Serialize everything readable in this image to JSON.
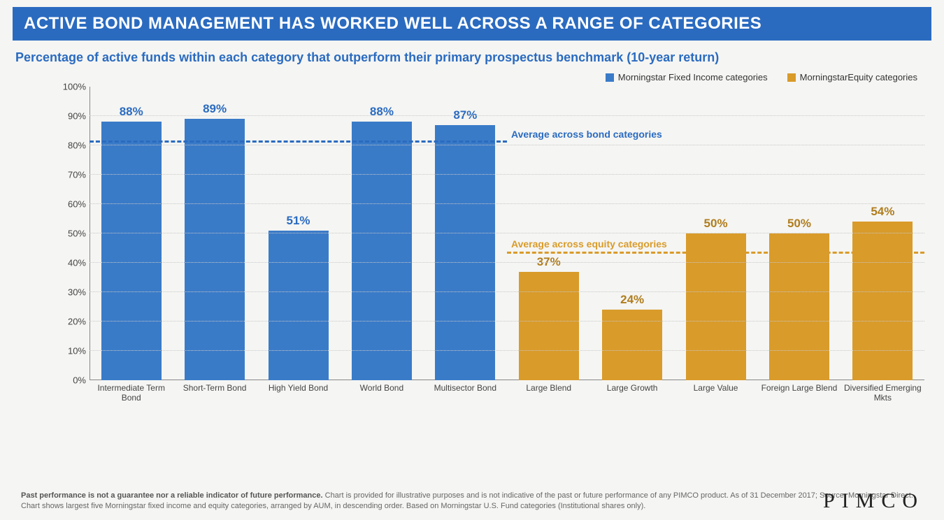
{
  "title": "ACTIVE BOND MANAGEMENT HAS WORKED WELL ACROSS A RANGE OF CATEGORIES",
  "subtitle": "Percentage of active funds within each category that outperform their primary prospectus benchmark (10-year return)",
  "legend": {
    "series1": {
      "label": "Morningstar Fixed Income categories",
      "color": "#3a7bc8"
    },
    "series2": {
      "label": "MorningstarEquity categories",
      "color": "#d99b2a"
    }
  },
  "chart": {
    "type": "bar",
    "ylim": [
      0,
      100
    ],
    "ytick_step": 10,
    "ytick_suffix": "%",
    "grid_color": "#c8c8c8",
    "axis_color": "#888888",
    "background": "#f5f5f3",
    "bars": [
      {
        "label": "Intermediate Term Bond",
        "value": 88,
        "color": "#3a7bc8",
        "label_color": "#2a6bc0"
      },
      {
        "label": "Short-Term Bond",
        "value": 89,
        "color": "#3a7bc8",
        "label_color": "#2a6bc0"
      },
      {
        "label": "High Yield Bond",
        "value": 51,
        "color": "#3a7bc8",
        "label_color": "#2a6bc0"
      },
      {
        "label": "World Bond",
        "value": 88,
        "color": "#3a7bc8",
        "label_color": "#2a6bc0"
      },
      {
        "label": "Multisector Bond",
        "value": 87,
        "color": "#3a7bc8",
        "label_color": "#2a6bc0"
      },
      {
        "label": "Large Blend",
        "value": 37,
        "color": "#d99b2a",
        "label_color": "#b07d1e"
      },
      {
        "label": "Large Growth",
        "value": 24,
        "color": "#d99b2a",
        "label_color": "#b07d1e"
      },
      {
        "label": "Large Value",
        "value": 50,
        "color": "#d99b2a",
        "label_color": "#b07d1e"
      },
      {
        "label": "Foreign Large Blend",
        "value": 50,
        "color": "#d99b2a",
        "label_color": "#b07d1e"
      },
      {
        "label": "Diversified Emerging Mkts",
        "value": 54,
        "color": "#d99b2a",
        "label_color": "#b07d1e"
      }
    ],
    "averages": {
      "bond": {
        "value": 81,
        "label": "Average across bond categories",
        "color": "#2a6bc0",
        "from_bar": 0,
        "to_bar": 5,
        "label_align": "right"
      },
      "equity": {
        "value": 43,
        "label": "Average across equity categories",
        "color": "#d99b2a",
        "from_bar": 5,
        "to_bar": 10,
        "label_align": "left"
      }
    },
    "bar_width_pct": 72,
    "value_fontsize": 17
  },
  "footer": {
    "bold": "Past performance is not a guarantee nor a reliable indicator of future performance.",
    "rest": " Chart is provided for illustrative purposes and is not indicative of the past or future performance of any PIMCO product. As of 31 December 2017; Source: Morningstar Direct. Chart shows largest five Morningstar fixed income and equity categories, arranged by AUM, in descending order. Based on Morningstar U.S. Fund categories (Institutional shares only)."
  },
  "brand": "PIMCO"
}
